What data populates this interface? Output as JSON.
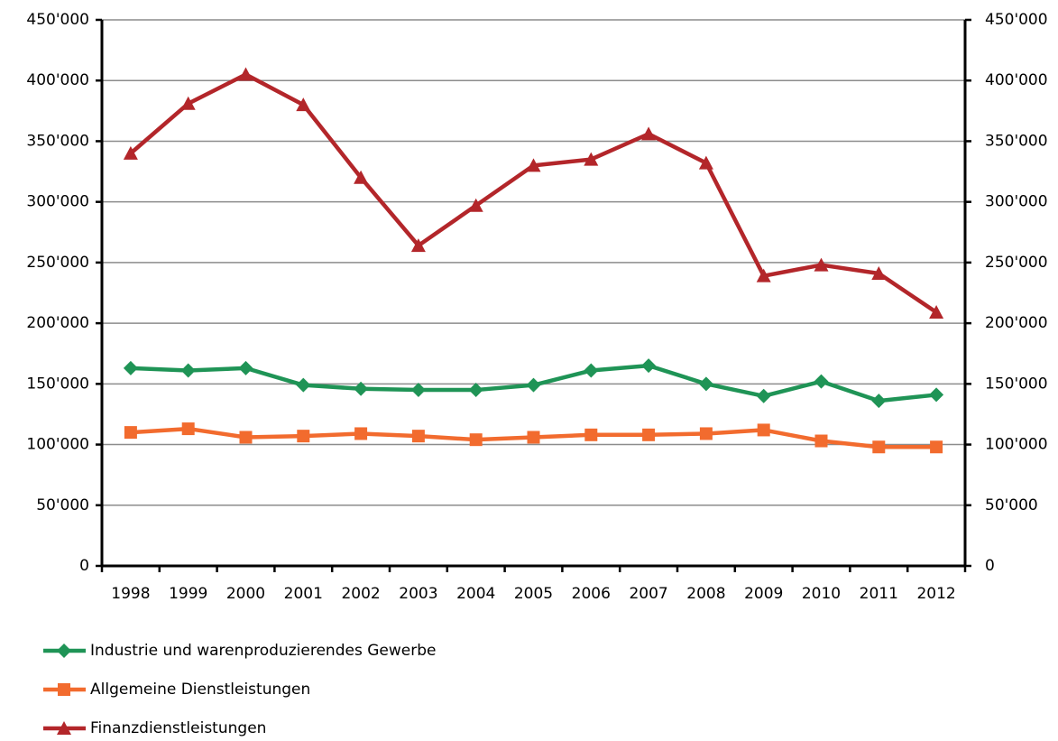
{
  "chart_data": {
    "type": "line",
    "categories": [
      "1998",
      "1999",
      "2000",
      "2001",
      "2002",
      "2003",
      "2004",
      "2005",
      "2006",
      "2007",
      "2008",
      "2009",
      "2010",
      "2011",
      "2012"
    ],
    "series": [
      {
        "name": "Industrie und warenproduzierendes Gewerbe",
        "color": "#1f9456",
        "marker": "diamond",
        "values": [
          163000,
          161000,
          163000,
          149000,
          146000,
          145000,
          145000,
          149000,
          161000,
          165000,
          150000,
          140000,
          152000,
          136000,
          141000
        ]
      },
      {
        "name": "Allgemeine Dienstleistungen",
        "color": "#f26b2e",
        "marker": "square",
        "values": [
          110000,
          113000,
          106000,
          107000,
          109000,
          107000,
          104000,
          106000,
          108000,
          108000,
          109000,
          112000,
          103000,
          98000,
          98000
        ]
      },
      {
        "name": "Finanzdienstleistungen",
        "color": "#b3262a",
        "marker": "triangle",
        "values": [
          340000,
          381000,
          405000,
          380000,
          320000,
          264000,
          297000,
          330000,
          335000,
          356000,
          332000,
          239000,
          248000,
          241000,
          209000
        ]
      }
    ],
    "ylim": [
      0,
      450000
    ],
    "yticks": [
      0,
      {
        "value": 50000,
        "label": "50'000"
      },
      {
        "value": 100000,
        "label": "100'000"
      },
      {
        "value": 150000,
        "label": "150'000"
      },
      {
        "value": 200000,
        "label": "200'000"
      },
      {
        "value": 250000,
        "label": "250'000"
      },
      {
        "value": 300000,
        "label": "300'000"
      },
      {
        "value": 350000,
        "label": "350'000"
      },
      {
        "value": 400000,
        "label": "400'000"
      },
      {
        "value": 450000,
        "label": "450'000"
      }
    ],
    "y2lim": [
      0,
      450000
    ],
    "y2ticks": [
      0,
      {
        "value": 50000,
        "label": "50'000"
      },
      {
        "value": 100000,
        "label": "100'000"
      },
      {
        "value": 150000,
        "label": "150'000"
      },
      {
        "value": 200000,
        "label": "200'000"
      },
      {
        "value": 250000,
        "label": "250'000"
      },
      {
        "value": 300000,
        "label": "300'000"
      },
      {
        "value": 350000,
        "label": "350'000"
      },
      {
        "value": 400000,
        "label": "400'000"
      },
      {
        "value": 450000,
        "label": "450'000"
      }
    ],
    "grid": true
  }
}
